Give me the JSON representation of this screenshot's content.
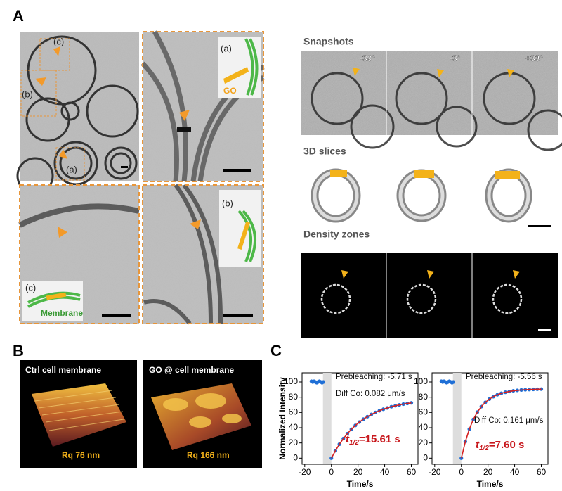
{
  "panel_a": {
    "label": "A",
    "overview_labels": [
      "(c)",
      "(b)",
      "(a)"
    ],
    "inset_a": {
      "label": "(a)",
      "text": "GO"
    },
    "inset_b": {
      "label": "(b)"
    },
    "inset_c": {
      "label": "(c)",
      "text": "Membrane"
    },
    "snapshots": {
      "title": "Snapshots",
      "angles": [
        "-39°",
        "-3°",
        "+33°"
      ]
    },
    "slices_title": "3D slices",
    "density_title": "Density zones"
  },
  "panel_b": {
    "label": "B",
    "images": [
      {
        "title": "Ctrl cell membrane",
        "roughness": "Rq 76 nm"
      },
      {
        "title": "GO @ cell membrane",
        "roughness": "Rq 166 nm"
      }
    ]
  },
  "panel_c": {
    "label": "C"
  },
  "chart_data": [
    {
      "type": "scatter",
      "ylabel": "Normalized Intensity",
      "xlabel": "Time/s",
      "xlim": [
        -22,
        65
      ],
      "ylim": [
        -8,
        112
      ],
      "xticks": [
        -20,
        0,
        20,
        40,
        60
      ],
      "yticks": [
        0,
        20,
        40,
        60,
        80,
        100
      ],
      "annotations": {
        "prebleaching": "Prebleaching: -5.71 s",
        "diffusion": "Diff Co: 0.082 μm/s",
        "half_time": {
          "symbol": "t",
          "subscript": "1/2",
          "text": "=15.61 s"
        }
      },
      "series": [
        {
          "color": "#1f6fd6",
          "x": [
            -15,
            -14,
            -13,
            -12,
            -11,
            -10,
            -9,
            -8,
            -7,
            -6,
            0,
            3,
            6,
            9,
            12,
            15,
            18,
            21,
            24,
            27,
            30,
            33,
            36,
            39,
            42,
            45,
            48,
            51,
            54,
            57,
            60
          ],
          "values": [
            101,
            100,
            101,
            100,
            99,
            100,
            101,
            100,
            99,
            100,
            0,
            9.7,
            18.3,
            25.7,
            32.2,
            38.0,
            43.0,
            47.4,
            51.2,
            54.5,
            57.4,
            60.0,
            62.2,
            64.2,
            65.9,
            67.5,
            68.8,
            69.9,
            70.9,
            71.8,
            72.6
          ]
        },
        {
          "color": "#d62020",
          "x": [
            0,
            3,
            6,
            9,
            12,
            15,
            18,
            21,
            24,
            27,
            30,
            33,
            36,
            39,
            42,
            45,
            48,
            51,
            54,
            57,
            60
          ],
          "values": [
            0,
            9.7,
            18.3,
            25.7,
            32.2,
            38.0,
            43.0,
            47.4,
            51.2,
            54.5,
            57.4,
            60.0,
            62.2,
            64.2,
            65.9,
            67.5,
            68.8,
            69.9,
            70.9,
            71.8,
            72.6
          ]
        }
      ]
    },
    {
      "type": "scatter",
      "xlabel": "Time/s",
      "xlim": [
        -22,
        65
      ],
      "ylim": [
        -8,
        112
      ],
      "xticks": [
        -20,
        0,
        20,
        40,
        60
      ],
      "yticks": [
        0,
        20,
        40,
        60,
        80,
        100
      ],
      "annotations": {
        "prebleaching": "Prebleaching: -5.56 s",
        "diffusion": "Diff Co: 0.161 μm/s",
        "half_time": {
          "symbol": "t",
          "subscript": "1/2",
          "text": "=7.60 s"
        }
      },
      "series": [
        {
          "color": "#1f6fd6",
          "x": [
            -15,
            -14,
            -13,
            -12,
            -11,
            -10,
            -9,
            -8,
            -7,
            -6,
            0,
            3,
            6,
            9,
            12,
            15,
            18,
            21,
            24,
            27,
            30,
            33,
            36,
            39,
            42,
            45,
            48,
            51,
            54,
            57,
            60
          ],
          "values": [
            101,
            100,
            101,
            100,
            99,
            100,
            101,
            100,
            99,
            100,
            0,
            21.7,
            38.2,
            50.9,
            60.4,
            67.7,
            73.3,
            77.5,
            80.7,
            83.2,
            85.1,
            86.5,
            87.5,
            88.4,
            89.0,
            89.5,
            89.8,
            90.1,
            90.3,
            90.5,
            90.6
          ]
        },
        {
          "color": "#d62020",
          "x": [
            0,
            3,
            6,
            9,
            12,
            15,
            18,
            21,
            24,
            27,
            30,
            33,
            36,
            39,
            42,
            45,
            48,
            51,
            54,
            57,
            60
          ],
          "values": [
            0,
            21.7,
            38.2,
            50.9,
            60.4,
            67.7,
            73.3,
            77.5,
            80.7,
            83.2,
            85.1,
            86.5,
            87.5,
            88.4,
            89.0,
            89.5,
            89.8,
            90.1,
            90.3,
            90.5,
            90.6
          ]
        }
      ]
    }
  ]
}
